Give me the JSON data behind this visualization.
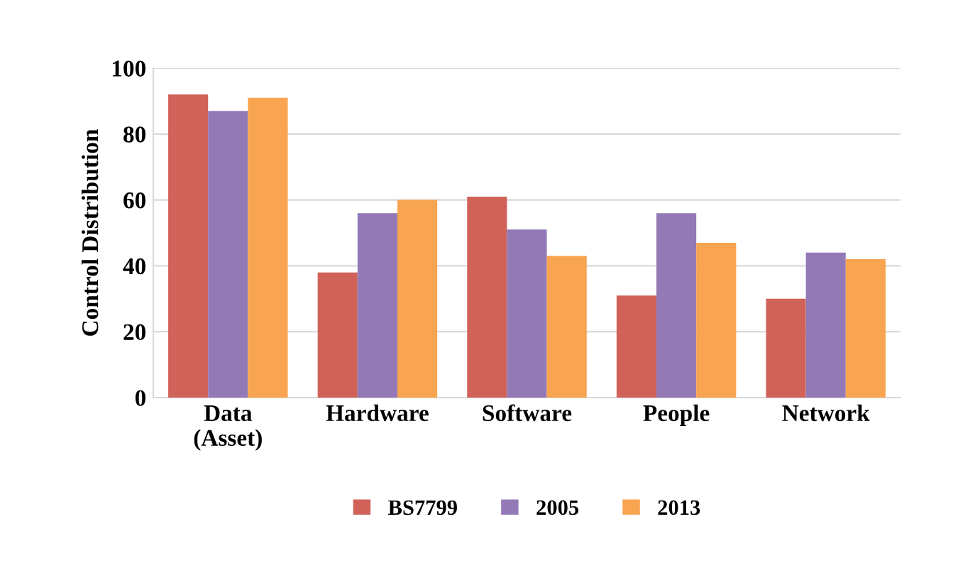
{
  "chart_data": {
    "type": "bar",
    "ylabel": "Control Distribution",
    "categories": [
      "Data\n(Asset)",
      "Hardware",
      "Software",
      "People",
      "Network"
    ],
    "series": [
      {
        "name": "BS7799",
        "color": "#d0625a",
        "values": [
          92,
          38,
          61,
          31,
          30
        ]
      },
      {
        "name": "2005",
        "color": "#937ab7",
        "values": [
          87,
          56,
          51,
          56,
          44
        ]
      },
      {
        "name": "2013",
        "color": "#f9a450",
        "values": [
          91,
          60,
          43,
          47,
          42
        ]
      }
    ],
    "ylim": [
      0,
      100
    ],
    "yticks": [
      0,
      20,
      40,
      60,
      80,
      100
    ],
    "grid": "y",
    "legend": "bottom"
  }
}
